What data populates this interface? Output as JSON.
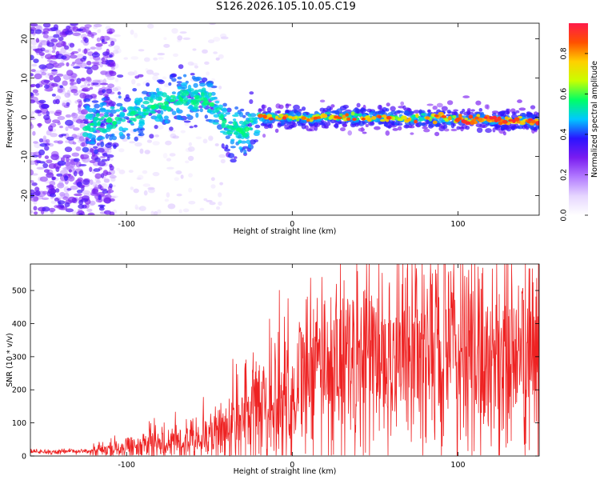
{
  "title": "S126.2026.105.10.05.C19",
  "chart_data": [
    {
      "type": "heatmap",
      "xlabel": "Height of straight line (km)",
      "ylabel": "Frequency (Hz)",
      "xlim": [
        -158,
        149
      ],
      "ylim": [
        -25,
        24
      ],
      "xticks": [
        -100,
        0,
        100
      ],
      "yticks": [
        -20,
        -10,
        0,
        10,
        20
      ],
      "colorbar": {
        "label": "Normalized spectral amplitude",
        "range": [
          0.0,
          0.95
        ],
        "ticks": [
          0.0,
          0.2,
          0.4,
          0.6,
          0.8
        ],
        "colors": [
          "#ffffff",
          "#e6d6ff",
          "#b27aff",
          "#7a1cf0",
          "#2a14ff",
          "#00c8ff",
          "#00ff66",
          "#c8ff00",
          "#ffd000",
          "#ff5000",
          "#ff1a4a"
        ]
      },
      "ridge": {
        "description_points": [
          {
            "x": -120,
            "y": -2
          },
          {
            "x": -100,
            "y": 0
          },
          {
            "x": -80,
            "y": 3
          },
          {
            "x": -65,
            "y": 5
          },
          {
            "x": -50,
            "y": 4
          },
          {
            "x": -40,
            "y": -2
          },
          {
            "x": -30,
            "y": -4
          },
          {
            "x": -20,
            "y": 0
          },
          {
            "x": 0,
            "y": 0
          },
          {
            "x": 50,
            "y": 0
          },
          {
            "x": 100,
            "y": -0.5
          },
          {
            "x": 149,
            "y": -1
          }
        ],
        "peak_amplitude": 0.92
      }
    },
    {
      "type": "line",
      "xlabel": "Height of straight line (km)",
      "ylabel": "SNR (10 * v/v)",
      "xlim": [
        -158,
        149
      ],
      "ylim": [
        0,
        580
      ],
      "xticks": [
        -100,
        0,
        100
      ],
      "yticks": [
        0,
        100,
        200,
        300,
        400,
        500
      ],
      "color": "#ee2222",
      "trend": [
        {
          "x": -158,
          "y": 12
        },
        {
          "x": -120,
          "y": 14
        },
        {
          "x": -100,
          "y": 25
        },
        {
          "x": -80,
          "y": 40
        },
        {
          "x": -60,
          "y": 55
        },
        {
          "x": -40,
          "y": 80
        },
        {
          "x": -30,
          "y": 110
        },
        {
          "x": -20,
          "y": 150
        },
        {
          "x": 0,
          "y": 200
        },
        {
          "x": 20,
          "y": 280
        },
        {
          "x": 40,
          "y": 300
        },
        {
          "x": 60,
          "y": 310
        },
        {
          "x": 80,
          "y": 320
        },
        {
          "x": 100,
          "y": 310
        },
        {
          "x": 120,
          "y": 300
        },
        {
          "x": 149,
          "y": 300
        }
      ],
      "peak": {
        "x": 92,
        "y": 580
      }
    }
  ]
}
